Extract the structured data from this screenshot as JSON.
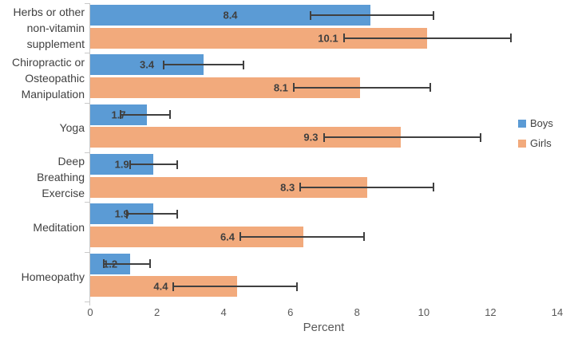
{
  "chart_data": {
    "type": "bar",
    "orientation": "horizontal",
    "title": "",
    "xlabel": "Percent",
    "xlim": [
      0,
      14
    ],
    "xticks": [
      0,
      2,
      4,
      6,
      8,
      10,
      12,
      14
    ],
    "grid": false,
    "legend_position": "right",
    "categories": [
      {
        "label": "Herbs or other non-vitamin supplement",
        "lines": [
          "Herbs or other",
          "non-vitamin",
          "supplement"
        ]
      },
      {
        "label": "Chiropractic or Osteopathic Manipulation",
        "lines": [
          "Chiropractic or",
          "Osteopathic",
          "Manipulation"
        ]
      },
      {
        "label": "Yoga",
        "lines": [
          "Yoga"
        ]
      },
      {
        "label": "Deep Breathing Exercise",
        "lines": [
          "Deep",
          "Breathing",
          "Exercise"
        ]
      },
      {
        "label": "Meditation",
        "lines": [
          "Meditation"
        ]
      },
      {
        "label": "Homeopathy",
        "lines": [
          "Homeopathy"
        ]
      }
    ],
    "series": [
      {
        "name": "Boys",
        "color": "#5b9bd5",
        "label_placement": "center",
        "values": [
          8.4,
          3.4,
          1.7,
          1.9,
          1.9,
          1.2
        ],
        "err_low": [
          6.6,
          2.2,
          0.9,
          1.2,
          1.1,
          0.4
        ],
        "err_high": [
          10.3,
          4.6,
          2.4,
          2.6,
          2.6,
          1.8
        ]
      },
      {
        "name": "Girls",
        "color": "#f2aa7c",
        "label_placement": "before_error",
        "values": [
          10.1,
          8.1,
          9.3,
          8.3,
          6.4,
          4.4
        ],
        "err_low": [
          7.6,
          6.1,
          7.0,
          6.3,
          4.5,
          2.5
        ],
        "err_high": [
          12.6,
          10.2,
          11.7,
          10.3,
          8.2,
          6.2
        ]
      }
    ],
    "error_bar_color": "#404040",
    "axis_color": "#c9c9c9"
  }
}
